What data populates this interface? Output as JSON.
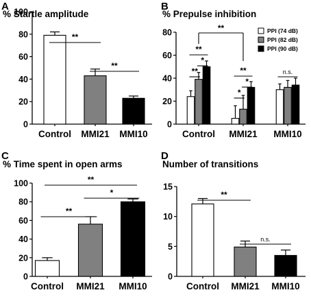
{
  "chart_data": [
    {
      "panel": "A",
      "type": "bar",
      "title": "% Startle amplitude",
      "categories": [
        "Control",
        "MMI21",
        "MMI10"
      ],
      "values": [
        79,
        43,
        23
      ],
      "errors": [
        3,
        6,
        2
      ],
      "colors": [
        "#ffffff",
        "#808080",
        "#000000"
      ],
      "ylim": [
        0,
        100
      ],
      "yticks": [
        "0",
        "20",
        "40",
        "60",
        "80",
        "100"
      ],
      "significance": [
        {
          "from": 0,
          "to": 1,
          "label": "**"
        },
        {
          "from": 1,
          "to": 2,
          "label": "**"
        }
      ]
    },
    {
      "panel": "B",
      "type": "bar",
      "title": "% Prepulse inhibition",
      "categories": [
        "Control",
        "MMI21",
        "MMI10"
      ],
      "series": [
        {
          "name": "PPI (74 dB)",
          "color": "#ffffff",
          "values": [
            24,
            5,
            30
          ],
          "errors": [
            5,
            11,
            5
          ]
        },
        {
          "name": "PPI (82 dB)",
          "color": "#808080",
          "values": [
            39,
            13,
            32
          ],
          "errors": [
            6,
            12,
            6
          ]
        },
        {
          "name": "PPI (90 dB)",
          "color": "#000000",
          "values": [
            50,
            32,
            34
          ],
          "errors": [
            5,
            5,
            6
          ]
        }
      ],
      "ylim": [
        0,
        80
      ],
      "yticks": [
        "0",
        "20",
        "40",
        "60",
        "80"
      ],
      "legend_position": "top-right",
      "significance": [
        {
          "group": 0,
          "from": 0,
          "to": 1,
          "label": "**"
        },
        {
          "group": 0,
          "from": 1,
          "to": 2,
          "label": "*"
        },
        {
          "group": 0,
          "from": 0,
          "to": 2,
          "label": "**"
        },
        {
          "group": 1,
          "from": 0,
          "to": 1,
          "label": "*"
        },
        {
          "group": 1,
          "from": 1,
          "to": 2,
          "label": "*"
        },
        {
          "group": 1,
          "from": 0,
          "to": 2,
          "label": "**"
        },
        {
          "group": 2,
          "label": "n.s."
        },
        {
          "between_groups": [
            0,
            1
          ],
          "label": "**"
        }
      ]
    },
    {
      "panel": "C",
      "type": "bar",
      "title": "% Time spent in open arms",
      "categories": [
        "Control",
        "MMI21",
        "MMI10"
      ],
      "values": [
        17,
        56,
        80
      ],
      "errors": [
        3,
        8,
        3
      ],
      "colors": [
        "#ffffff",
        "#808080",
        "#000000"
      ],
      "ylim": [
        0,
        100
      ],
      "yticks": [
        "0",
        "20",
        "40",
        "60",
        "80",
        "100"
      ],
      "significance": [
        {
          "from": 0,
          "to": 1,
          "label": "**"
        },
        {
          "from": 1,
          "to": 2,
          "label": "*"
        },
        {
          "from": 0,
          "to": 2,
          "label": "**"
        }
      ]
    },
    {
      "panel": "D",
      "type": "bar",
      "title": "Number of transitions",
      "categories": [
        "Control",
        "MMI21",
        "MMI10"
      ],
      "values": [
        12.1,
        4.9,
        3.5
      ],
      "errors": [
        0.9,
        1.0,
        0.9
      ],
      "colors": [
        "#ffffff",
        "#808080",
        "#000000"
      ],
      "ylim": [
        0,
        15
      ],
      "yticks": [
        "0",
        "5",
        "10",
        "15"
      ],
      "significance": [
        {
          "from": 0,
          "to": 1,
          "label": "**"
        },
        {
          "from": 1,
          "to": 2,
          "label": "n.s."
        }
      ]
    }
  ]
}
